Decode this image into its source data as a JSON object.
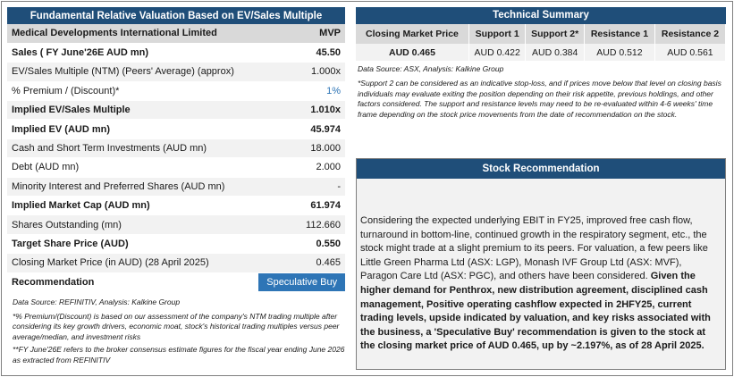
{
  "valuation": {
    "title": "Fundamental Relative Valuation Based on EV/Sales Multiple",
    "company_label": "Medical Developments International Limited",
    "ticker": "MVP",
    "rows": [
      {
        "label": "Sales ( FY June'26E AUD mn)",
        "value": "45.50"
      },
      {
        "label": "EV/Sales Multiple (NTM)  (Peers' Average) (approx)",
        "value": "1.000x"
      },
      {
        "label": "% Premium / (Discount)*",
        "value": "1%"
      },
      {
        "label": "Implied EV/Sales Multiple",
        "value": "1.010x"
      },
      {
        "label": "Implied EV (AUD mn)",
        "value": "45.974"
      },
      {
        "label": "Cash and Short Term Investments (AUD mn)",
        "value": "18.000"
      },
      {
        "label": "Debt (AUD mn)",
        "value": "2.000"
      },
      {
        "label": "Minority Interest and Preferred Shares (AUD mn)",
        "value": "-"
      },
      {
        "label": "Implied Market Cap (AUD mn)",
        "value": "61.974"
      },
      {
        "label": "Shares Outstanding (mn)",
        "value": "112.660"
      },
      {
        "label": "Target Share Price (AUD)",
        "value": "0.550"
      },
      {
        "label": "Closing Market Price (in AUD) (28 April 2025)",
        "value": "0.465"
      },
      {
        "label": "Recommendation",
        "value": "Speculative Buy"
      }
    ],
    "source": "Data Source: REFINITIV, Analysis: Kalkine Group",
    "note1": "*% Premium/(Discount) is based on our assessment of the company's NTM trading multiple after considering its key growth drivers, economic moat, stock's historical trading multiples versus peer average/median, and investment risks",
    "note2": "**FY June'26E refers to the broker consensus estimate figures for the fiscal year ending June 2026 as extracted from REFINITIV"
  },
  "technical": {
    "title": "Technical Summary",
    "headers": [
      "Closing Market Price",
      "Support 1",
      "Support 2*",
      "Resistance 1",
      "Resistance 2"
    ],
    "values": [
      "AUD 0.465",
      "AUD 0.422",
      "AUD 0.384",
      "AUD 0.512",
      "AUD 0.561"
    ],
    "source": "Data Source: ASX, Analysis: Kalkine Group",
    "note": "*Support 2 can be considered as an indicative stop-loss, and if prices move below that level on closing basis individuals may evaluate exiting the position depending on their risk appetite, previous holdings, and other factors considered. The support and resistance levels may need to be re-evaluated within 4-6 weeks' time frame depending on the stock price movements from the date of recommendation on the stock."
  },
  "recommendation": {
    "title": "Stock Recommendation",
    "text_normal": "Considering the expected underlying EBIT in FY25, improved free cash flow, turnaround in bottom-line, continued growth in the respiratory segment, etc., the stock might trade at a slight premium to its peers. For valuation, a few peers like Little Green Pharma Ltd (ASX: LGP), Monash IVF Group Ltd (ASX: MVF), Paragon Care Ltd (ASX: PGC), and others have been considered. ",
    "text_bold": "Given the higher demand for Penthrox, new distribution agreement, disciplined cash management, Positive operating cashflow expected in 2HFY25, current trading levels, upside indicated by valuation, and key risks associated with the business, a 'Speculative Buy' recommendation is given to the stock at the closing market price of AUD 0.465, up by ~2.197%, as of 28 April 2025."
  }
}
